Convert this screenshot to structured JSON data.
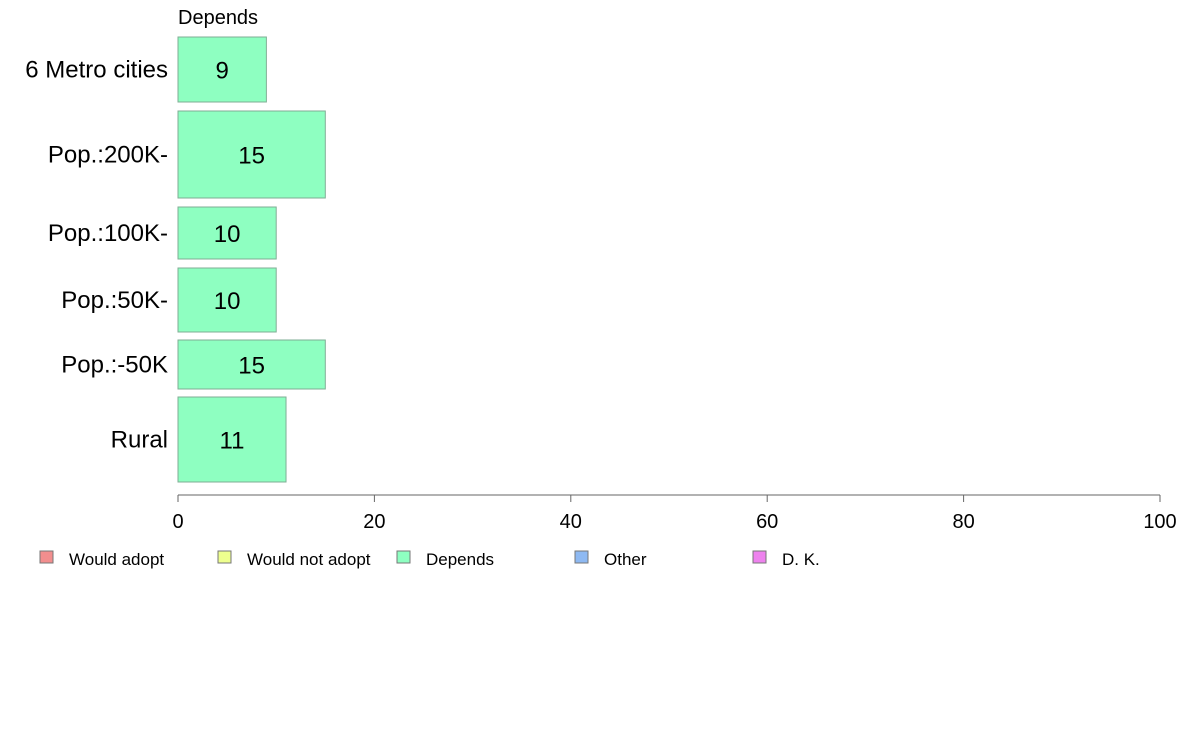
{
  "chart_data": {
    "type": "bar",
    "orientation": "horizontal",
    "column_title": "Depends",
    "categories": [
      "6 Metro cities",
      "Pop.:200K-",
      "Pop.:100K-",
      "Pop.:50K-",
      "Pop.:-50K",
      "Rural"
    ],
    "series": [
      {
        "name": "Depends",
        "values": [
          9,
          15,
          10,
          10,
          15,
          11
        ],
        "color": "#8effc1"
      }
    ],
    "data_labels": [
      "9",
      "15",
      "10",
      "10",
      "15",
      "11"
    ],
    "xlim": [
      0,
      100
    ],
    "xticks": [
      0,
      20,
      40,
      60,
      80,
      100
    ],
    "xtick_labels": [
      "0",
      "20",
      "40",
      "60",
      "80",
      "100"
    ],
    "legend": {
      "placement": "bottom",
      "items": [
        {
          "label": "Would adopt",
          "color": "#f28e8e"
        },
        {
          "label": "Would not adopt",
          "color": "#eeff8e"
        },
        {
          "label": "Depends",
          "color": "#8effc1"
        },
        {
          "label": "Other",
          "color": "#8eb9f2"
        },
        {
          "label": "D. K.",
          "color": "#ee82ee"
        }
      ]
    },
    "grid": false
  }
}
